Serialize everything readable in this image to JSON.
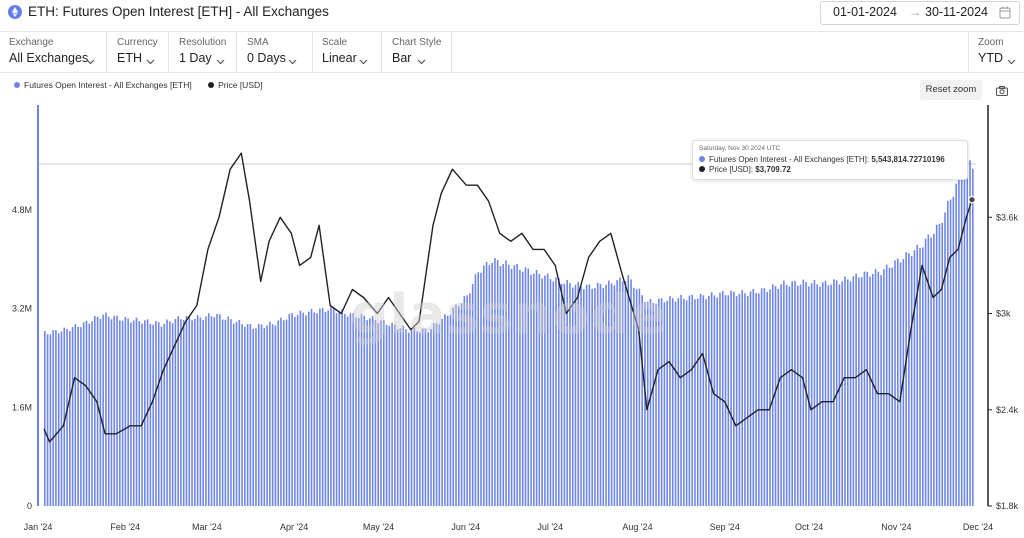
{
  "header": {
    "title": "ETH: Futures Open Interest [ETH] - All Exchanges",
    "date_from": "01-01-2024",
    "date_arrow": "→",
    "date_to": "30-11-2024"
  },
  "controls": [
    {
      "label": "Exchange",
      "value": "All Exchanges"
    },
    {
      "label": "Currency",
      "value": "ETH"
    },
    {
      "label": "Resolution",
      "value": "1 Day"
    },
    {
      "label": "SMA",
      "value": "0 Days"
    },
    {
      "label": "Scale",
      "value": "Linear"
    },
    {
      "label": "Chart Style",
      "value": "Bar"
    }
  ],
  "zoom": {
    "label": "Zoom",
    "value": "YTD"
  },
  "legend": [
    {
      "name": "Futures Open Interest - All Exchanges [ETH]",
      "color": "#6f86e8"
    },
    {
      "name": "Price [USD]",
      "color": "#222222"
    }
  ],
  "reset_zoom": "Reset zoom",
  "watermark": "glassnode",
  "tooltip": {
    "date": "Saturday, Nov 30 2024 UTC",
    "oi_label": "Futures Open Interest - All Exchanges [ETH]:",
    "oi_value": "5,543,814.72710196",
    "price_label": "Price [USD]:",
    "price_value": "$3,709.72"
  },
  "chart_data": {
    "type": "bar",
    "x_start": "2024-01-01",
    "x_end": "2024-11-30",
    "x_ticks": [
      "Jan '24",
      "Feb '24",
      "Mar '24",
      "Apr '24",
      "May '24",
      "Jun '24",
      "Jul '24",
      "Aug '24",
      "Sep '24",
      "Oct '24",
      "Nov '24",
      "Dec '24"
    ],
    "y_left": {
      "ticks": [
        "0",
        "1.6M",
        "3.2M",
        "4.8M"
      ],
      "range": [
        0,
        6500000
      ]
    },
    "y_right": {
      "ticks": [
        "$1.8k",
        "$2.4k",
        "$3k",
        "$3.6k"
      ],
      "range": [
        1800,
        4300
      ]
    },
    "series": [
      {
        "name": "Futures Open Interest - All Exchanges [ETH]",
        "type": "bar",
        "color": "#6f86e8",
        "axis": "left",
        "points": [
          [
            "2024-01-01",
            2800000
          ],
          [
            "2024-01-08",
            2850000
          ],
          [
            "2024-01-15",
            2950000
          ],
          [
            "2024-01-22",
            3100000
          ],
          [
            "2024-01-29",
            3030000
          ],
          [
            "2024-02-05",
            3000000
          ],
          [
            "2024-02-12",
            2950000
          ],
          [
            "2024-02-19",
            3050000
          ],
          [
            "2024-02-26",
            3050000
          ],
          [
            "2024-03-02",
            3100000
          ],
          [
            "2024-03-09",
            3000000
          ],
          [
            "2024-03-16",
            2900000
          ],
          [
            "2024-03-23",
            2950000
          ],
          [
            "2024-03-30",
            3100000
          ],
          [
            "2024-04-06",
            3150000
          ],
          [
            "2024-04-13",
            3200000
          ],
          [
            "2024-04-20",
            3100000
          ],
          [
            "2024-04-27",
            3050000
          ],
          [
            "2024-05-04",
            2950000
          ],
          [
            "2024-05-11",
            2850000
          ],
          [
            "2024-05-18",
            2850000
          ],
          [
            "2024-05-25",
            3100000
          ],
          [
            "2024-06-01",
            3400000
          ],
          [
            "2024-06-05",
            3800000
          ],
          [
            "2024-06-10",
            3980000
          ],
          [
            "2024-06-17",
            3900000
          ],
          [
            "2024-06-24",
            3800000
          ],
          [
            "2024-07-01",
            3700000
          ],
          [
            "2024-07-08",
            3600000
          ],
          [
            "2024-07-15",
            3550000
          ],
          [
            "2024-07-22",
            3600000
          ],
          [
            "2024-07-29",
            3700000
          ],
          [
            "2024-08-05",
            3300000
          ],
          [
            "2024-08-12",
            3350000
          ],
          [
            "2024-08-19",
            3380000
          ],
          [
            "2024-08-26",
            3400000
          ],
          [
            "2024-09-02",
            3450000
          ],
          [
            "2024-09-09",
            3450000
          ],
          [
            "2024-09-16",
            3500000
          ],
          [
            "2024-09-23",
            3600000
          ],
          [
            "2024-09-30",
            3620000
          ],
          [
            "2024-10-07",
            3600000
          ],
          [
            "2024-10-14",
            3650000
          ],
          [
            "2024-10-21",
            3750000
          ],
          [
            "2024-10-28",
            3800000
          ],
          [
            "2024-11-04",
            4000000
          ],
          [
            "2024-11-11",
            4200000
          ],
          [
            "2024-11-18",
            4550000
          ],
          [
            "2024-11-25",
            5300000
          ],
          [
            "2024-11-27",
            5600000
          ],
          [
            "2024-11-30",
            5543814.73
          ]
        ]
      },
      {
        "name": "Price [USD]",
        "type": "line",
        "color": "#222222",
        "axis": "right",
        "points": [
          [
            "2024-01-01",
            2280
          ],
          [
            "2024-01-03",
            2200
          ],
          [
            "2024-01-08",
            2300
          ],
          [
            "2024-01-12",
            2600
          ],
          [
            "2024-01-16",
            2550
          ],
          [
            "2024-01-20",
            2450
          ],
          [
            "2024-01-23",
            2250
          ],
          [
            "2024-01-27",
            2250
          ],
          [
            "2024-02-01",
            2300
          ],
          [
            "2024-02-05",
            2300
          ],
          [
            "2024-02-09",
            2450
          ],
          [
            "2024-02-13",
            2650
          ],
          [
            "2024-02-17",
            2800
          ],
          [
            "2024-02-21",
            2950
          ],
          [
            "2024-02-25",
            3050
          ],
          [
            "2024-02-29",
            3400
          ],
          [
            "2024-03-04",
            3600
          ],
          [
            "2024-03-08",
            3900
          ],
          [
            "2024-03-12",
            4000
          ],
          [
            "2024-03-15",
            3700
          ],
          [
            "2024-03-19",
            3200
          ],
          [
            "2024-03-22",
            3450
          ],
          [
            "2024-03-26",
            3600
          ],
          [
            "2024-03-30",
            3500
          ],
          [
            "2024-04-02",
            3300
          ],
          [
            "2024-04-06",
            3350
          ],
          [
            "2024-04-09",
            3550
          ],
          [
            "2024-04-13",
            3050
          ],
          [
            "2024-04-17",
            3000
          ],
          [
            "2024-04-21",
            3150
          ],
          [
            "2024-04-25",
            3100
          ],
          [
            "2024-04-30",
            3000
          ],
          [
            "2024-05-04",
            3100
          ],
          [
            "2024-05-08",
            3000
          ],
          [
            "2024-05-12",
            2900
          ],
          [
            "2024-05-15",
            2950
          ],
          [
            "2024-05-20",
            3550
          ],
          [
            "2024-05-23",
            3750
          ],
          [
            "2024-05-27",
            3900
          ],
          [
            "2024-06-01",
            3800
          ],
          [
            "2024-06-05",
            3800
          ],
          [
            "2024-06-09",
            3700
          ],
          [
            "2024-06-13",
            3500
          ],
          [
            "2024-06-17",
            3450
          ],
          [
            "2024-06-21",
            3500
          ],
          [
            "2024-06-25",
            3400
          ],
          [
            "2024-06-29",
            3400
          ],
          [
            "2024-07-03",
            3300
          ],
          [
            "2024-07-07",
            3000
          ],
          [
            "2024-07-11",
            3100
          ],
          [
            "2024-07-15",
            3350
          ],
          [
            "2024-07-19",
            3450
          ],
          [
            "2024-07-23",
            3500
          ],
          [
            "2024-07-27",
            3250
          ],
          [
            "2024-08-02",
            2900
          ],
          [
            "2024-08-05",
            2400
          ],
          [
            "2024-08-09",
            2650
          ],
          [
            "2024-08-13",
            2700
          ],
          [
            "2024-08-17",
            2600
          ],
          [
            "2024-08-21",
            2650
          ],
          [
            "2024-08-25",
            2750
          ],
          [
            "2024-08-29",
            2500
          ],
          [
            "2024-09-02",
            2450
          ],
          [
            "2024-09-06",
            2300
          ],
          [
            "2024-09-10",
            2350
          ],
          [
            "2024-09-14",
            2400
          ],
          [
            "2024-09-18",
            2400
          ],
          [
            "2024-09-22",
            2600
          ],
          [
            "2024-09-26",
            2650
          ],
          [
            "2024-09-30",
            2600
          ],
          [
            "2024-10-03",
            2400
          ],
          [
            "2024-10-07",
            2450
          ],
          [
            "2024-10-11",
            2450
          ],
          [
            "2024-10-15",
            2600
          ],
          [
            "2024-10-19",
            2600
          ],
          [
            "2024-10-23",
            2650
          ],
          [
            "2024-10-27",
            2500
          ],
          [
            "2024-10-31",
            2500
          ],
          [
            "2024-11-04",
            2450
          ],
          [
            "2024-11-08",
            2900
          ],
          [
            "2024-11-12",
            3300
          ],
          [
            "2024-11-16",
            3100
          ],
          [
            "2024-11-19",
            3150
          ],
          [
            "2024-11-22",
            3350
          ],
          [
            "2024-11-25",
            3400
          ],
          [
            "2024-11-28",
            3600
          ],
          [
            "2024-11-30",
            3709.72
          ]
        ]
      }
    ]
  }
}
